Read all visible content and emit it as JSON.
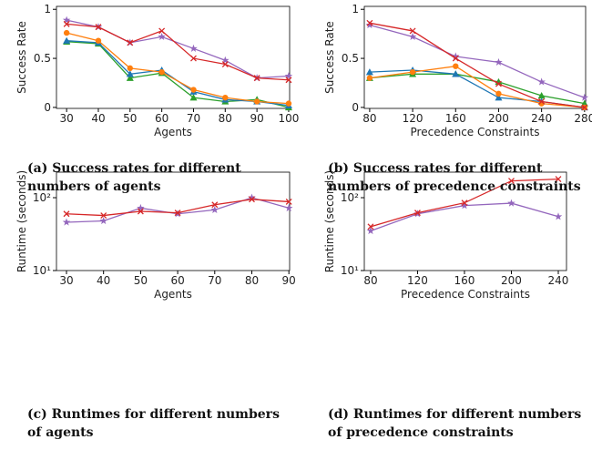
{
  "chart_data": [
    {
      "type": "line",
      "caption": "(a) Success rates for different numbers of agents",
      "xlabel": "Agents",
      "ylabel": "Success Rate",
      "x": [
        30,
        40,
        50,
        60,
        70,
        80,
        90,
        100
      ],
      "xlim": [
        26.8,
        100.3
      ],
      "xticks": [
        30,
        40,
        50,
        60,
        70,
        80,
        90,
        100
      ],
      "ylim": [
        -0.01,
        1.03
      ],
      "yticks": [
        0.0,
        0.5,
        1.0
      ],
      "yscale": "linear",
      "series": [
        {
          "color": "#2ca02c",
          "marker": "triangle",
          "values": [
            0.67,
            0.65,
            0.3,
            0.35,
            0.1,
            0.06,
            0.08,
            0.0
          ]
        },
        {
          "color": "#1f77b4",
          "marker": "triangle",
          "values": [
            0.68,
            0.66,
            0.34,
            0.38,
            0.16,
            0.08,
            0.06,
            0.02
          ]
        },
        {
          "color": "#ff7f0e",
          "marker": "circle",
          "values": [
            0.76,
            0.68,
            0.4,
            0.36,
            0.18,
            0.1,
            0.06,
            0.04
          ]
        },
        {
          "color": "#9467bd",
          "marker": "star",
          "values": [
            0.89,
            0.82,
            0.66,
            0.72,
            0.6,
            0.48,
            0.3,
            0.32
          ]
        },
        {
          "color": "#d62728",
          "marker": "x",
          "values": [
            0.85,
            0.82,
            0.66,
            0.78,
            0.5,
            0.44,
            0.3,
            0.28
          ]
        }
      ]
    },
    {
      "type": "line",
      "caption": "(b) Success rates for different numbers of precedence constraints",
      "xlabel": "Precedence Constraints",
      "ylabel": "Success Rate",
      "x": [
        80,
        120,
        160,
        200,
        240,
        280
      ],
      "xlim": [
        75,
        281
      ],
      "xticks": [
        80,
        120,
        160,
        200,
        240,
        280
      ],
      "ylim": [
        -0.01,
        1.03
      ],
      "yticks": [
        0.0,
        0.5,
        1.0
      ],
      "yscale": "linear",
      "series": [
        {
          "color": "#2ca02c",
          "marker": "triangle",
          "values": [
            0.3,
            0.34,
            0.34,
            0.26,
            0.12,
            0.04
          ]
        },
        {
          "color": "#1f77b4",
          "marker": "triangle",
          "values": [
            0.36,
            0.38,
            0.34,
            0.1,
            0.06,
            0.0
          ]
        },
        {
          "color": "#ff7f0e",
          "marker": "circle",
          "values": [
            0.3,
            0.36,
            0.42,
            0.14,
            0.04,
            0.0
          ]
        },
        {
          "color": "#9467bd",
          "marker": "star",
          "values": [
            0.84,
            0.72,
            0.52,
            0.46,
            0.26,
            0.1
          ]
        },
        {
          "color": "#d62728",
          "marker": "x",
          "values": [
            0.86,
            0.78,
            0.5,
            0.24,
            0.06,
            0.0
          ]
        }
      ]
    },
    {
      "type": "line",
      "caption": "(c) Runtimes for different numbers of agents",
      "xlabel": "Agents",
      "ylabel": "Runtime (seconds)",
      "x": [
        30,
        40,
        50,
        60,
        70,
        80,
        90
      ],
      "xlim": [
        27.3,
        90.2
      ],
      "xticks": [
        30,
        40,
        50,
        60,
        70,
        80,
        90
      ],
      "ylim": [
        10,
        224
      ],
      "yticks": [
        {
          "value": 10,
          "label": "10¹"
        },
        {
          "value": 100,
          "label": "10²"
        }
      ],
      "yscale": "log",
      "series": [
        {
          "color": "#9467bd",
          "marker": "star",
          "values": [
            46,
            48,
            72,
            60,
            68,
            100,
            72
          ]
        },
        {
          "color": "#d62728",
          "marker": "x",
          "values": [
            60,
            57,
            65,
            62,
            80,
            95,
            88
          ]
        }
      ]
    },
    {
      "type": "line",
      "caption": "(d) Runtimes for different numbers of precedence constraints",
      "xlabel": "Precedence Constraints",
      "ylabel": "Runtime (seconds)",
      "x": [
        80,
        120,
        160,
        200,
        240
      ],
      "xlim": [
        74.6,
        247
      ],
      "xticks": [
        80,
        120,
        160,
        200,
        240
      ],
      "ylim": [
        10,
        224
      ],
      "yticks": [
        {
          "value": 10,
          "label": "10¹"
        },
        {
          "value": 100,
          "label": "10²"
        }
      ],
      "yscale": "log",
      "series": [
        {
          "color": "#9467bd",
          "marker": "star",
          "values": [
            35,
            60,
            78,
            84,
            55
          ]
        },
        {
          "color": "#d62728",
          "marker": "x",
          "values": [
            40,
            62,
            85,
            170,
            180
          ]
        }
      ]
    }
  ]
}
